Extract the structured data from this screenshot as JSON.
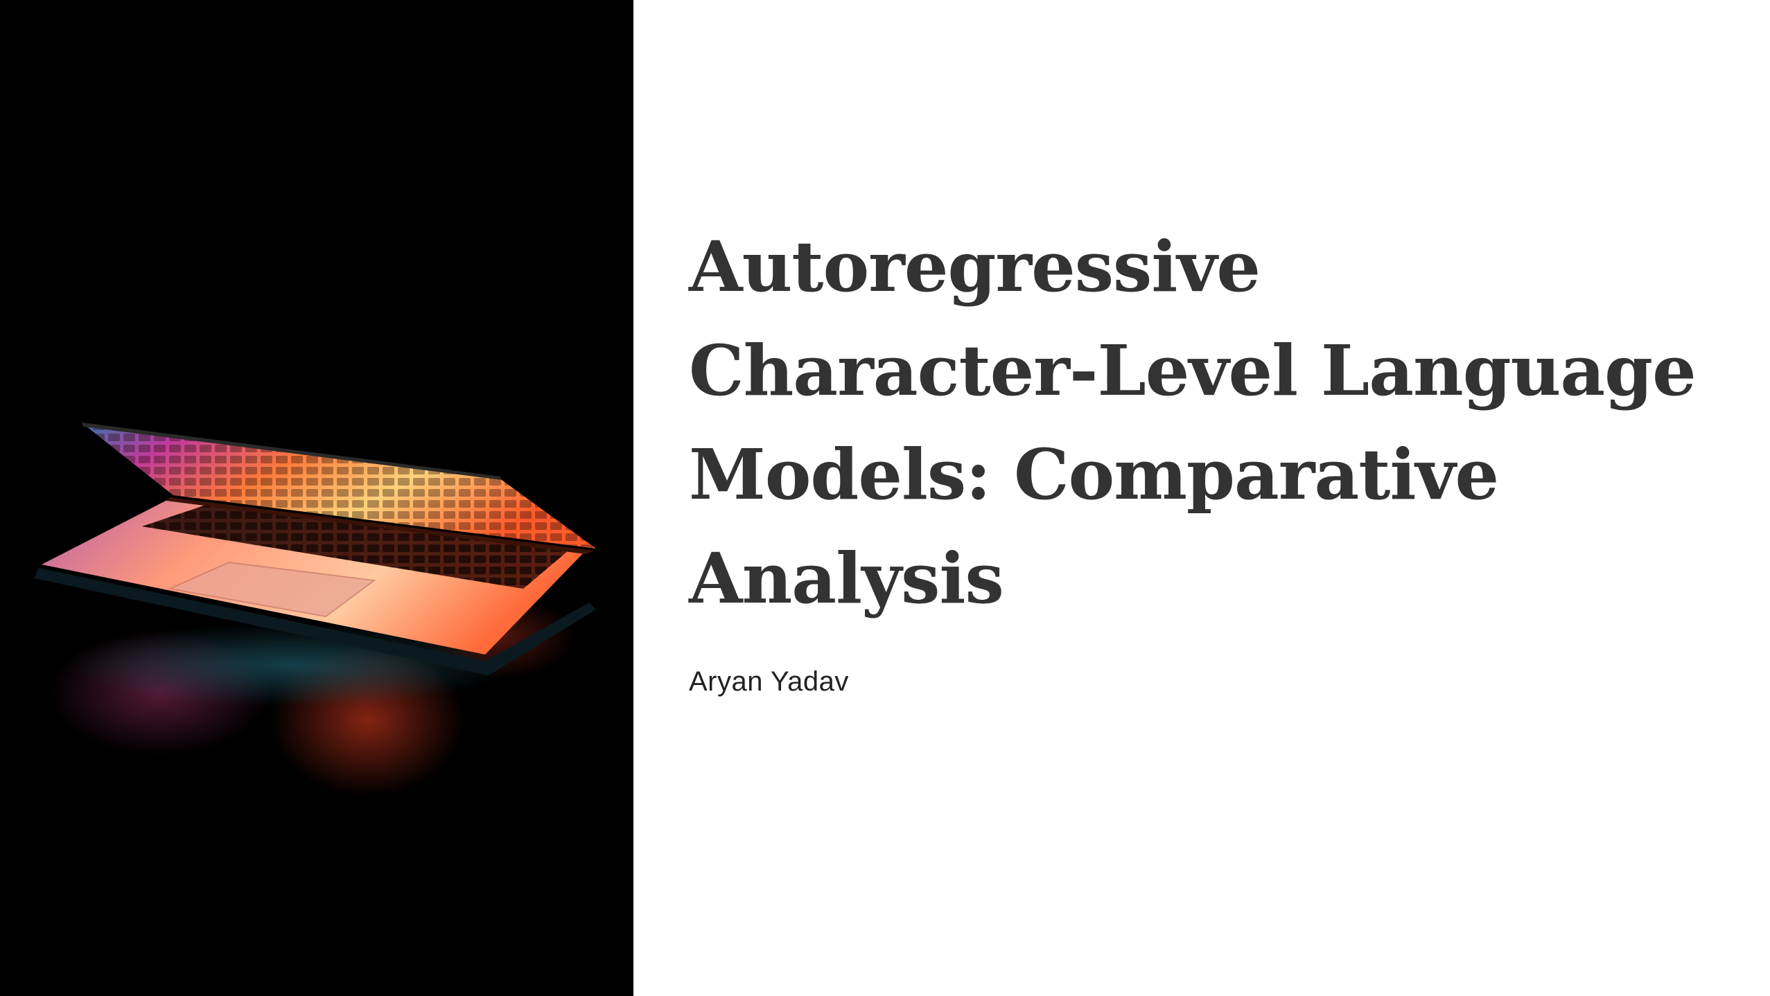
{
  "slide": {
    "title_lines": [
      "Autoregressive",
      "Character-Level Language",
      "Models: Comparative",
      "Analysis"
    ],
    "author": "Aryan Yadav"
  },
  "image": {
    "subject": "laptop-photo",
    "background_color": "#000000"
  },
  "colors": {
    "title": "#333333",
    "author": "#222222",
    "background": "#ffffff"
  }
}
